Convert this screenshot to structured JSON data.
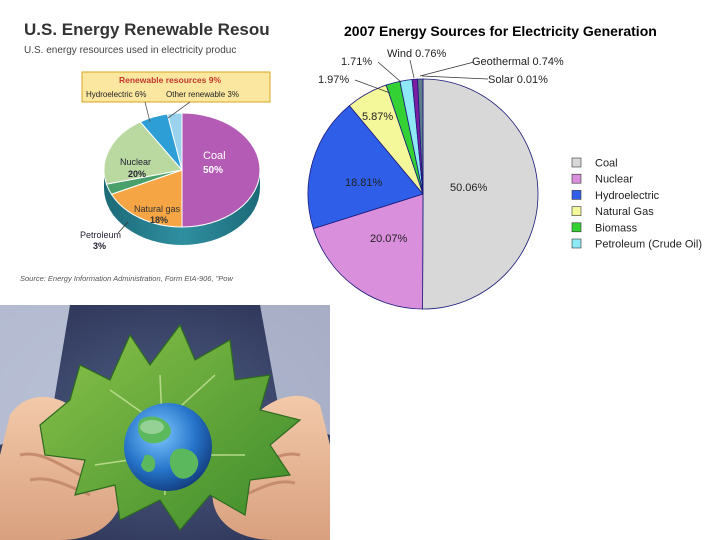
{
  "colors": {
    "coal_2007": "#d8d8d8",
    "nuclear_2007": "#d98fdc",
    "hydro_2007": "#2f5fe8",
    "gas_2007": "#f4f79a",
    "biomass_2007": "#33d133",
    "petroleum_2007": "#8ee8f5",
    "wind_2007": "#7b1fa2",
    "geothermal_2007": "#607d8b",
    "solar_2007": "#ff9800"
  },
  "chart_data": [
    {
      "type": "pie",
      "title": "U.S. Energy Renewable Resou",
      "subtitle": "U.S. energy resources used in electricity produc",
      "source": "Source: Energy Information Administration, Form EIA-906, \"Pow",
      "callout": {
        "title": "Renewable resources 9%",
        "items": [
          "Hydroelectric 6%",
          "Other renewable 3%"
        ]
      },
      "slices": [
        {
          "name": "Coal",
          "value": 50,
          "label": "50%",
          "color": "#b45bb5"
        },
        {
          "name": "Natural gas",
          "value": 18,
          "label": "18%",
          "color": "#f5a543"
        },
        {
          "name": "Petroleum",
          "value": 3,
          "label": "3%",
          "color": "#4aa06a"
        },
        {
          "name": "Nuclear",
          "value": 20,
          "label": "20%",
          "color": "#b9d9a0"
        },
        {
          "name": "Hydroelectric",
          "value": 6,
          "label": "",
          "color": "#2e9fd6"
        },
        {
          "name": "Other renewable",
          "value": 3,
          "label": "",
          "color": "#9bd3ee"
        }
      ]
    },
    {
      "type": "pie",
      "title": "2007 Energy Sources for Electricity Generation",
      "legend_position": "right",
      "slices": [
        {
          "name": "Coal",
          "value": 50.06,
          "label": "50.06%",
          "legend": "Coal"
        },
        {
          "name": "Nuclear",
          "value": 20.07,
          "label": "20.07%",
          "legend": "Nuclear"
        },
        {
          "name": "Hydroelectric",
          "value": 18.81,
          "label": "18.81%",
          "legend": "Hydroelectric"
        },
        {
          "name": "Natural Gas",
          "value": 5.87,
          "label": "5.87%",
          "legend": "Natural Gas"
        },
        {
          "name": "Biomass",
          "value": 1.97,
          "label": "1.97%",
          "legend": "Biomass"
        },
        {
          "name": "Petroleum (Crude Oil)",
          "value": 1.71,
          "label": "1.71%",
          "legend": "Petroleum (Crude Oil)"
        },
        {
          "name": "Wind",
          "value": 0.76,
          "label": "Wind 0.76%"
        },
        {
          "name": "Geothermal",
          "value": 0.74,
          "label": "Geothermal 0.74%"
        },
        {
          "name": "Solar",
          "value": 0.01,
          "label": "Solar 0.01%"
        }
      ]
    }
  ]
}
